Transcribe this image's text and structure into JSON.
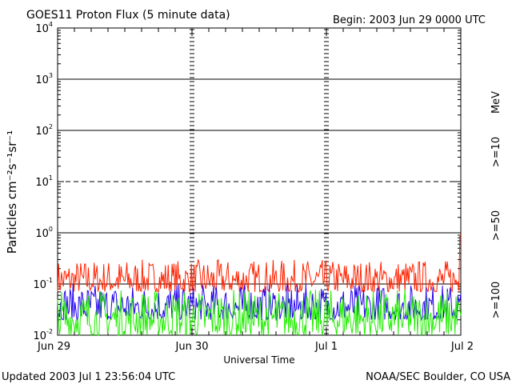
{
  "header": {
    "title": "GOES11 Proton Flux (5 minute data)",
    "begin": "Begin: 2003 Jun 29 0000 UTC"
  },
  "footer": {
    "updated": "Updated 2003 Jul  1 23:56:04 UTC",
    "credit": "NOAA/SEC Boulder, CO USA"
  },
  "axis": {
    "ylabel": "Particles cm⁻²s⁻¹sr⁻¹",
    "xlabel": "Universal Time",
    "x_ticks": [
      "Jun 29",
      "Jun 30",
      "Jul 1",
      "Jul 2"
    ],
    "y_tick_exponents": [
      "-2",
      "-1",
      "0",
      "1",
      "2",
      "3",
      "4"
    ]
  },
  "legend": {
    "unit": "MeV",
    "gt10": ">=10",
    "gt50": ">=50",
    "gt100": ">=100"
  },
  "colors": {
    "gt10": "#ff2200",
    "gt50": "#2200ee",
    "gt100": "#22ee00",
    "gridline": "#000000"
  },
  "chart_data": {
    "type": "line",
    "title": "GOES11 Proton Flux (5 minute data)",
    "xlabel": "Universal Time",
    "ylabel": "Particles cm⁻²s⁻¹sr⁻¹",
    "x_range": [
      "2003-06-29 00:00",
      "2003-07-02 00:00"
    ],
    "x_ticks": [
      "Jun 29",
      "Jun 30",
      "Jul 1",
      "Jul 2"
    ],
    "yscale": "log",
    "ylim": [
      0.01,
      10000
    ],
    "reference_lines": [
      {
        "y": 1,
        "style": "solid"
      },
      {
        "y": 10,
        "style": "dashed"
      },
      {
        "y": 100,
        "style": "solid"
      },
      {
        "y": 1000,
        "style": "solid"
      },
      {
        "y": 0.1,
        "style": "solid"
      }
    ],
    "series": [
      {
        "name": ">=10 MeV",
        "color": "#ff2200",
        "typical_min": 0.07,
        "typical_max": 0.3,
        "peak_value": 0.9,
        "peak_at": "2003-07-01 23:55"
      },
      {
        "name": ">=50 MeV",
        "color": "#2200ee",
        "typical_min": 0.02,
        "typical_max": 0.1
      },
      {
        "name": ">=100 MeV",
        "color": "#22ee00",
        "typical_min": 0.01,
        "typical_max": 0.08
      }
    ]
  }
}
